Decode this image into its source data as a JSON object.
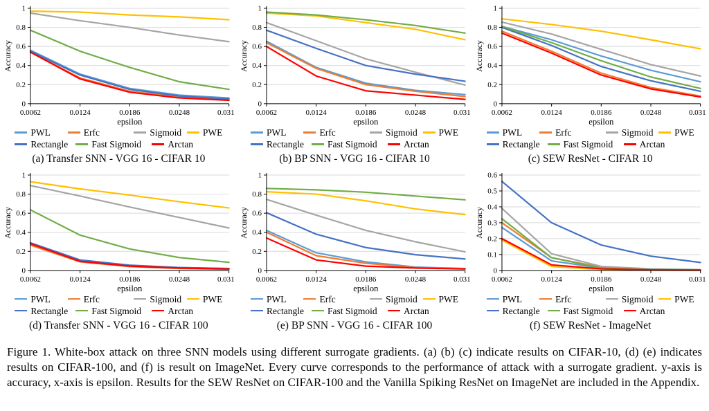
{
  "colors": {
    "PWL": "#5B9BD5",
    "Erfc": "#ED7D31",
    "Sigmoid": "#A5A5A5",
    "PWE": "#FFC000",
    "Rectangle": "#4472C4",
    "Fast Sigmoid": "#70AD47",
    "Arctan": "#FF0000"
  },
  "legend": {
    "rows": [
      [
        "PWL",
        "Erfc",
        "Sigmoid",
        "PWE"
      ],
      [
        "Rectangle",
        "Fast Sigmoid",
        "Arctan"
      ]
    ]
  },
  "chart_data": [
    {
      "type": "line",
      "title": "(a) Transfer SNN - VGG 16 - CIFAR 10",
      "xlabel": "epsilon",
      "ylabel": "Accuracy",
      "x": [
        0.0062,
        0.0124,
        0.0186,
        0.0248,
        0.031
      ],
      "x_ticklabels": [
        "0.0062",
        "0.0124",
        "0.0186",
        "0.0248",
        "0.031"
      ],
      "ylim": [
        0,
        1
      ],
      "yticks": [
        0,
        0.2,
        0.4,
        0.6,
        0.8,
        1
      ],
      "grid": true,
      "legend_position": "below",
      "series": [
        {
          "name": "PWL",
          "values": [
            0.56,
            0.31,
            0.16,
            0.09,
            0.06
          ]
        },
        {
          "name": "Erfc",
          "values": [
            0.54,
            0.27,
            0.13,
            0.07,
            0.04
          ]
        },
        {
          "name": "Sigmoid",
          "values": [
            0.95,
            0.87,
            0.8,
            0.72,
            0.65
          ]
        },
        {
          "name": "PWE",
          "values": [
            0.97,
            0.96,
            0.93,
            0.91,
            0.88
          ]
        },
        {
          "name": "Rectangle",
          "values": [
            0.55,
            0.3,
            0.15,
            0.08,
            0.05
          ]
        },
        {
          "name": "Fast Sigmoid",
          "values": [
            0.77,
            0.55,
            0.38,
            0.23,
            0.15
          ]
        },
        {
          "name": "Arctan",
          "values": [
            0.54,
            0.26,
            0.12,
            0.06,
            0.035
          ]
        }
      ]
    },
    {
      "type": "line",
      "title": "(b) BP SNN - VGG 16 - CIFAR 10",
      "xlabel": "epsilon",
      "ylabel": "Accuracy",
      "x": [
        0.0062,
        0.0124,
        0.0186,
        0.0248,
        0.031
      ],
      "x_ticklabels": [
        "0.0062",
        "0.0124",
        "0.0186",
        "0.0248",
        "0.031"
      ],
      "ylim": [
        0,
        1
      ],
      "yticks": [
        0,
        0.2,
        0.4,
        0.6,
        0.8,
        1
      ],
      "grid": true,
      "legend_position": "below",
      "series": [
        {
          "name": "PWL",
          "values": [
            0.655,
            0.38,
            0.215,
            0.14,
            0.095
          ]
        },
        {
          "name": "Erfc",
          "values": [
            0.64,
            0.37,
            0.2,
            0.13,
            0.075
          ]
        },
        {
          "name": "Sigmoid",
          "values": [
            0.85,
            0.66,
            0.47,
            0.33,
            0.195
          ]
        },
        {
          "name": "PWE",
          "values": [
            0.95,
            0.92,
            0.85,
            0.78,
            0.67
          ]
        },
        {
          "name": "Rectangle",
          "values": [
            0.77,
            0.58,
            0.4,
            0.31,
            0.235
          ]
        },
        {
          "name": "Fast Sigmoid",
          "values": [
            0.96,
            0.93,
            0.88,
            0.82,
            0.74
          ]
        },
        {
          "name": "Arctan",
          "values": [
            0.6,
            0.29,
            0.135,
            0.09,
            0.045
          ]
        }
      ]
    },
    {
      "type": "line",
      "title": "(c) SEW ResNet - CIFAR 10",
      "xlabel": "epsilon",
      "ylabel": "Accuracy",
      "x": [
        0.0062,
        0.0124,
        0.0186,
        0.0248,
        0.031
      ],
      "x_ticklabels": [
        "0.0062",
        "0.0124",
        "0.0186",
        "0.0248",
        "0.031"
      ],
      "ylim": [
        0,
        1
      ],
      "yticks": [
        0,
        0.2,
        0.4,
        0.6,
        0.8,
        1
      ],
      "grid": true,
      "legend_position": "below",
      "series": [
        {
          "name": "PWL",
          "values": [
            0.81,
            0.67,
            0.5,
            0.35,
            0.23
          ]
        },
        {
          "name": "Erfc",
          "values": [
            0.76,
            0.55,
            0.32,
            0.17,
            0.08
          ]
        },
        {
          "name": "Sigmoid",
          "values": [
            0.855,
            0.73,
            0.57,
            0.41,
            0.29
          ]
        },
        {
          "name": "PWE",
          "values": [
            0.89,
            0.83,
            0.76,
            0.67,
            0.575
          ]
        },
        {
          "name": "Rectangle",
          "values": [
            0.8,
            0.61,
            0.39,
            0.24,
            0.13
          ]
        },
        {
          "name": "Fast Sigmoid",
          "values": [
            0.81,
            0.64,
            0.45,
            0.28,
            0.16
          ]
        },
        {
          "name": "Arctan",
          "values": [
            0.74,
            0.53,
            0.3,
            0.155,
            0.07
          ]
        }
      ]
    },
    {
      "type": "line",
      "title": "(d) Transfer SNN - VGG 16 - CIFAR 100",
      "xlabel": "epsilon",
      "ylabel": "Accuracy",
      "x": [
        0.0062,
        0.0124,
        0.0186,
        0.0248,
        0.031
      ],
      "x_ticklabels": [
        "0.0062",
        "0.0124",
        "0.0186",
        "0.0248",
        "0.031"
      ],
      "ylim": [
        0,
        1
      ],
      "yticks": [
        0,
        0.2,
        0.4,
        0.6,
        0.8,
        1
      ],
      "grid": true,
      "legend_position": "below",
      "series": [
        {
          "name": "PWL",
          "values": [
            0.285,
            0.105,
            0.05,
            0.03,
            0.02
          ]
        },
        {
          "name": "Erfc",
          "values": [
            0.265,
            0.09,
            0.04,
            0.02,
            0.012
          ]
        },
        {
          "name": "Sigmoid",
          "values": [
            0.89,
            0.78,
            0.665,
            0.555,
            0.445
          ]
        },
        {
          "name": "PWE",
          "values": [
            0.93,
            0.855,
            0.79,
            0.72,
            0.655
          ]
        },
        {
          "name": "Rectangle",
          "values": [
            0.29,
            0.11,
            0.055,
            0.03,
            0.02
          ]
        },
        {
          "name": "Fast Sigmoid",
          "values": [
            0.635,
            0.37,
            0.225,
            0.135,
            0.085
          ]
        },
        {
          "name": "Arctan",
          "values": [
            0.28,
            0.095,
            0.045,
            0.025,
            0.015
          ]
        }
      ]
    },
    {
      "type": "line",
      "title": "(e) BP SNN - VGG 16 - CIFAR 100",
      "xlabel": "epsilon",
      "ylabel": "Accuracy",
      "x": [
        0.0062,
        0.0124,
        0.0186,
        0.0248,
        0.031
      ],
      "x_ticklabels": [
        "0.0062",
        "0.0124",
        "0.0186",
        "0.0248",
        "0.031"
      ],
      "ylim": [
        0,
        1
      ],
      "yticks": [
        0,
        0.2,
        0.4,
        0.6,
        0.8,
        1
      ],
      "grid": true,
      "legend_position": "below",
      "series": [
        {
          "name": "PWL",
          "values": [
            0.42,
            0.185,
            0.09,
            0.035,
            0.02
          ]
        },
        {
          "name": "Erfc",
          "values": [
            0.4,
            0.155,
            0.075,
            0.03,
            0.018
          ]
        },
        {
          "name": "Sigmoid",
          "values": [
            0.745,
            0.58,
            0.42,
            0.3,
            0.195
          ]
        },
        {
          "name": "PWE",
          "values": [
            0.825,
            0.8,
            0.73,
            0.645,
            0.585
          ]
        },
        {
          "name": "Rectangle",
          "values": [
            0.605,
            0.38,
            0.24,
            0.165,
            0.12
          ]
        },
        {
          "name": "Fast Sigmoid",
          "values": [
            0.86,
            0.845,
            0.82,
            0.78,
            0.74
          ]
        },
        {
          "name": "Arctan",
          "values": [
            0.34,
            0.11,
            0.045,
            0.025,
            0.015
          ]
        }
      ]
    },
    {
      "type": "line",
      "title": "(f) SEW ResNet - ImageNet",
      "xlabel": "epsilon",
      "ylabel": "Accuracy",
      "x": [
        0.0062,
        0.0124,
        0.0186,
        0.0248,
        0.031
      ],
      "x_ticklabels": [
        "0.0062",
        "0.0124",
        "0.0186",
        "0.0248",
        "0.031"
      ],
      "ylim": [
        0,
        0.6
      ],
      "yticks": [
        0,
        0.1,
        0.2,
        0.3,
        0.4,
        0.5,
        0.6
      ],
      "grid": true,
      "legend_position": "below",
      "series": [
        {
          "name": "PWL",
          "values": [
            0.27,
            0.06,
            0.015,
            0.005,
            0.002
          ]
        },
        {
          "name": "Erfc",
          "values": [
            0.3,
            0.08,
            0.02,
            0.006,
            0.003
          ]
        },
        {
          "name": "Sigmoid",
          "values": [
            0.39,
            0.105,
            0.025,
            0.01,
            0.005
          ]
        },
        {
          "name": "PWE",
          "values": [
            0.19,
            0.025,
            0.005,
            0.002,
            0.001
          ]
        },
        {
          "name": "Rectangle",
          "values": [
            0.56,
            0.3,
            0.16,
            0.09,
            0.05
          ]
        },
        {
          "name": "Fast Sigmoid",
          "values": [
            0.325,
            0.08,
            0.015,
            0.005,
            0.003
          ]
        },
        {
          "name": "Arctan",
          "values": [
            0.2,
            0.035,
            0.01,
            0.003,
            0.002
          ]
        }
      ]
    }
  ],
  "caption": {
    "text": "Figure 1.  White-box attack on three SNN models using different surrogate gradients. (a) (b) (c) indicate results on CIFAR-10, (d) (e) indicates results on CIFAR-100, and (f) is result on ImageNet. Every curve corresponds to the performance of attack with a surrogate gradient. y-axis is accuracy, x-axis is epsilon. Results for the SEW ResNet on CIFAR-100 and the Vanilla Spiking ResNet on ImageNet are included in the Appendix."
  }
}
